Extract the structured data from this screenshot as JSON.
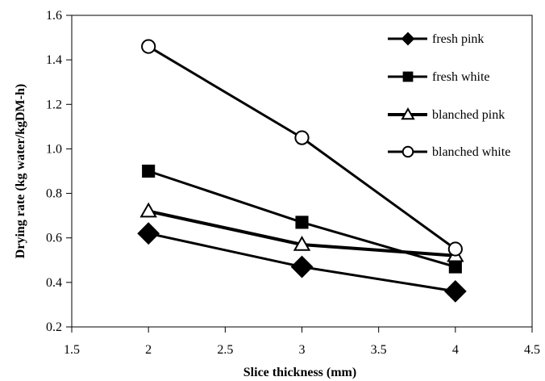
{
  "chart_data": {
    "type": "line",
    "title": "",
    "xlabel": "Slice thickness (mm)",
    "ylabel": "Drying rate (kg water/kgDM-h)",
    "xlim": [
      1.5,
      4.5
    ],
    "ylim": [
      0.2,
      1.6
    ],
    "x_ticks": [
      "1.5",
      "2",
      "2.5",
      "3",
      "3.5",
      "4",
      "4.5"
    ],
    "y_ticks": [
      "0.2",
      "0.4",
      "0.6",
      "0.8",
      "1.0",
      "1.2",
      "1.4",
      "1.6"
    ],
    "grid": false,
    "legend_position": "top-right",
    "series": [
      {
        "name": "fresh pink",
        "marker": "diamond",
        "x": [
          2,
          3,
          4
        ],
        "y": [
          0.62,
          0.47,
          0.36
        ]
      },
      {
        "name": "fresh white",
        "marker": "square",
        "x": [
          2,
          3,
          4
        ],
        "y": [
          0.9,
          0.67,
          0.47
        ]
      },
      {
        "name": "blanched pink",
        "marker": "triangle",
        "x": [
          2,
          3,
          4
        ],
        "y": [
          0.72,
          0.57,
          0.52
        ]
      },
      {
        "name": "blanched white",
        "marker": "circle",
        "x": [
          2,
          3,
          4
        ],
        "y": [
          1.46,
          1.05,
          0.55
        ]
      }
    ],
    "colors": {
      "line": "#000000",
      "background": "#ffffff",
      "open_marker_fill": "#ffffff"
    }
  }
}
